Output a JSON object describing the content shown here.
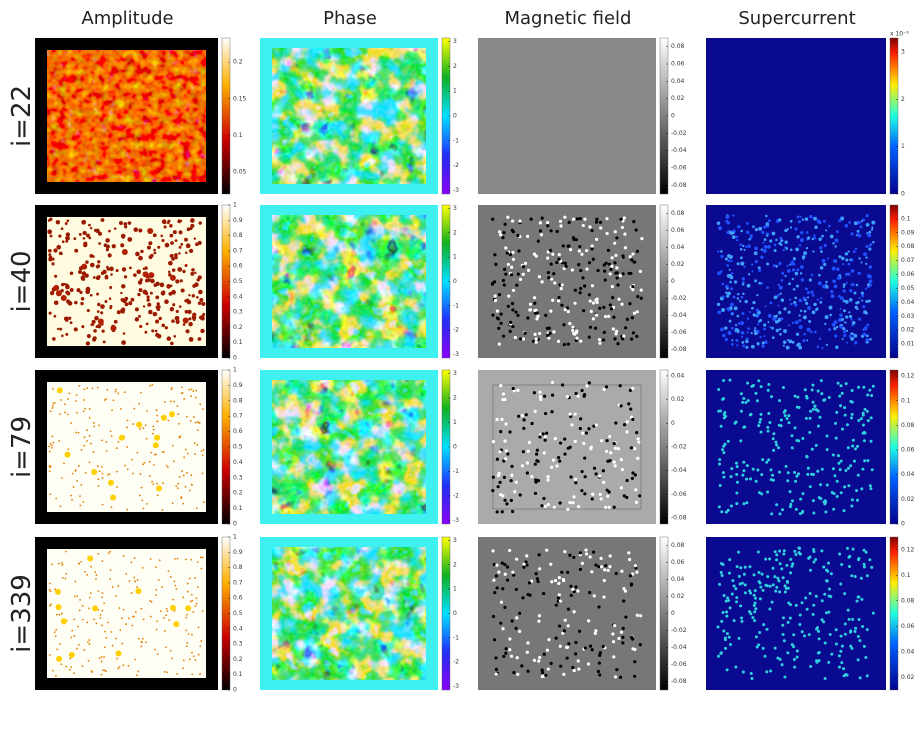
{
  "columns": [
    "Amplitude",
    "Phase",
    "Magnetic field",
    "Supercurrent"
  ],
  "rows": [
    {
      "label": "i=22",
      "colorbars": [
        {
          "lim": [
            0.02,
            0.233
          ],
          "ticks": [
            0.05,
            0.1,
            0.15,
            0.2
          ]
        },
        {
          "lim": [
            -3.14,
            3.14
          ],
          "ticks": [
            -3,
            -2,
            -1,
            0,
            1,
            2,
            3
          ]
        },
        {
          "lim": [
            -0.09,
            0.09
          ],
          "ticks": [
            -0.08,
            -0.06,
            -0.04,
            -0.02,
            0,
            0.02,
            0.04,
            0.06,
            0.08
          ]
        },
        {
          "lim": [
            0,
            3.3
          ],
          "ticks": [
            0,
            1,
            2,
            3
          ],
          "scale_label": "x 10⁻³"
        }
      ]
    },
    {
      "label": "i=40",
      "colorbars": [
        {
          "lim": [
            0,
            1
          ],
          "ticks": [
            0,
            0.1,
            0.2,
            0.3,
            0.4,
            0.5,
            0.6,
            0.7,
            0.8,
            0.9,
            1
          ]
        },
        {
          "lim": [
            -3.14,
            3.14
          ],
          "ticks": [
            -3,
            -2,
            -1,
            0,
            1,
            2,
            3
          ]
        },
        {
          "lim": [
            -0.09,
            0.09
          ],
          "ticks": [
            -0.08,
            -0.06,
            -0.04,
            -0.02,
            0,
            0.02,
            0.04,
            0.06,
            0.08
          ]
        },
        {
          "lim": [
            0,
            0.11
          ],
          "ticks": [
            0.01,
            0.02,
            0.03,
            0.04,
            0.05,
            0.06,
            0.07,
            0.08,
            0.09,
            0.1
          ]
        }
      ]
    },
    {
      "label": "i=79",
      "colorbars": [
        {
          "lim": [
            0,
            1
          ],
          "ticks": [
            0,
            0.1,
            0.2,
            0.3,
            0.4,
            0.5,
            0.6,
            0.7,
            0.8,
            0.9,
            1
          ]
        },
        {
          "lim": [
            -3.14,
            3.14
          ],
          "ticks": [
            -3,
            -2,
            -1,
            0,
            1,
            2,
            3
          ]
        },
        {
          "lim": [
            -0.085,
            0.045
          ],
          "ticks": [
            -0.08,
            -0.06,
            -0.04,
            -0.02,
            0,
            0.02,
            0.04
          ]
        },
        {
          "lim": [
            0,
            0.125
          ],
          "ticks": [
            0,
            0.02,
            0.04,
            0.06,
            0.08,
            0.1,
            0.12
          ]
        }
      ]
    },
    {
      "label": "i=339",
      "colorbars": [
        {
          "lim": [
            0,
            1
          ],
          "ticks": [
            0,
            0.1,
            0.2,
            0.3,
            0.4,
            0.5,
            0.6,
            0.7,
            0.8,
            0.9,
            1
          ]
        },
        {
          "lim": [
            -3.14,
            3.14
          ],
          "ticks": [
            -3,
            -2,
            -1,
            0,
            1,
            2,
            3
          ]
        },
        {
          "lim": [
            -0.09,
            0.09
          ],
          "ticks": [
            -0.08,
            -0.06,
            -0.04,
            -0.02,
            0,
            0.02,
            0.04,
            0.06,
            0.08
          ]
        },
        {
          "lim": [
            0.01,
            0.13
          ],
          "ticks": [
            0.02,
            0.04,
            0.06,
            0.08,
            0.1,
            0.12
          ]
        }
      ]
    }
  ]
}
